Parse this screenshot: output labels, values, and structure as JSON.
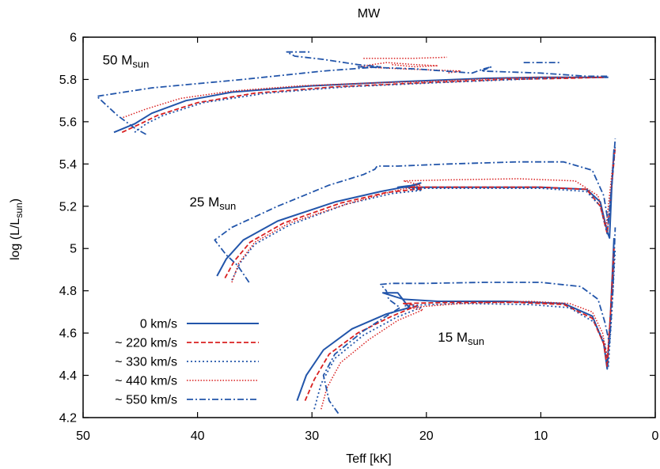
{
  "chart_data": {
    "type": "line",
    "title": "MW",
    "xlabel": "Teff [kK]",
    "ylabel_main": "log (L/L",
    "ylabel_sub": "sun",
    "ylabel_end": ")",
    "xlim": [
      50,
      0
    ],
    "ylim": [
      4.2,
      6.0
    ],
    "x_ticks": [
      50,
      40,
      30,
      20,
      10,
      0
    ],
    "y_ticks": [
      4.2,
      4.4,
      4.6,
      4.8,
      5.0,
      5.2,
      5.4,
      5.6,
      5.8,
      6.0
    ],
    "x_tick_labels": [
      "50",
      "40",
      "30",
      "20",
      "10",
      "0"
    ],
    "y_tick_labels": [
      "4.2",
      "4.4",
      "4.6",
      "4.8",
      "5",
      "5.2",
      "5.4",
      "5.6",
      "5.8",
      "6"
    ],
    "grid": false,
    "legend_position": "bottom-left",
    "annotations": [
      {
        "main": "50 M",
        "sub": "sun",
        "x": 48.3,
        "y": 5.87
      },
      {
        "main": "25 M",
        "sub": "sun",
        "x": 40.7,
        "y": 5.2
      },
      {
        "main": "15 M",
        "sub": "sun",
        "x": 19.0,
        "y": 4.56
      }
    ],
    "series": [
      {
        "name": "0 km/s",
        "color": "#2255aa",
        "dash": "solid",
        "width": 2,
        "tracks": [
          [
            [
              47.3,
              5.55
            ],
            [
              45.5,
              5.59
            ],
            [
              44,
              5.64
            ],
            [
              41,
              5.7
            ],
            [
              37,
              5.74
            ],
            [
              30,
              5.77
            ],
            [
              22,
              5.79
            ],
            [
              15,
              5.805
            ],
            [
              10,
              5.81
            ],
            [
              5,
              5.81
            ],
            [
              4.1,
              5.81
            ]
          ],
          [
            [
              38.3,
              4.87
            ],
            [
              37.5,
              4.95
            ],
            [
              36,
              5.04
            ],
            [
              33,
              5.13
            ],
            [
              28,
              5.22
            ],
            [
              24,
              5.27
            ],
            [
              21.5,
              5.295
            ],
            [
              20.5,
              5.31
            ],
            [
              21,
              5.3
            ],
            [
              22.5,
              5.29
            ],
            [
              18,
              5.29
            ],
            [
              10,
              5.29
            ],
            [
              6,
              5.28
            ],
            [
              4.8,
              5.22
            ],
            [
              4.2,
              5.08
            ],
            [
              4.0,
              5.05
            ],
            [
              3.8,
              5.3
            ],
            [
              3.6,
              5.47
            ]
          ],
          [
            [
              31.3,
              4.28
            ],
            [
              30.5,
              4.4
            ],
            [
              29,
              4.52
            ],
            [
              26.5,
              4.62
            ],
            [
              23.5,
              4.69
            ],
            [
              21.5,
              4.72
            ],
            [
              22.5,
              4.79
            ],
            [
              23.8,
              4.79
            ],
            [
              22,
              4.76
            ],
            [
              19,
              4.75
            ],
            [
              13,
              4.75
            ],
            [
              8,
              4.74
            ],
            [
              5.5,
              4.68
            ],
            [
              4.5,
              4.55
            ],
            [
              4.2,
              4.43
            ],
            [
              3.9,
              4.7
            ],
            [
              3.6,
              5.05
            ]
          ]
        ]
      },
      {
        "name": "~ 220 km/s",
        "color": "#d92020",
        "dash": "6,3",
        "width": 1.8,
        "tracks": [
          [
            [
              46.6,
              5.55
            ],
            [
              45,
              5.59
            ],
            [
              43.5,
              5.63
            ],
            [
              40,
              5.69
            ],
            [
              35,
              5.735
            ],
            [
              28,
              5.765
            ],
            [
              20,
              5.785
            ],
            [
              13,
              5.8
            ],
            [
              8,
              5.805
            ],
            [
              4.5,
              5.81
            ]
          ],
          [
            [
              37.6,
              4.86
            ],
            [
              36.8,
              4.94
            ],
            [
              35.4,
              5.03
            ],
            [
              32.5,
              5.12
            ],
            [
              27.5,
              5.215
            ],
            [
              23.5,
              5.265
            ],
            [
              21,
              5.28
            ],
            [
              20.3,
              5.28
            ],
            [
              21.5,
              5.29
            ],
            [
              17,
              5.29
            ],
            [
              10,
              5.29
            ],
            [
              6,
              5.28
            ],
            [
              4.8,
              5.2
            ],
            [
              4.2,
              5.07
            ],
            [
              3.8,
              5.3
            ],
            [
              3.5,
              5.48
            ]
          ],
          [
            [
              30.6,
              4.28
            ],
            [
              29.8,
              4.38
            ],
            [
              28.5,
              4.5
            ],
            [
              26,
              4.6
            ],
            [
              23,
              4.68
            ],
            [
              20.8,
              4.73
            ],
            [
              22,
              4.74
            ],
            [
              18,
              4.745
            ],
            [
              12,
              4.745
            ],
            [
              8,
              4.735
            ],
            [
              5.5,
              4.67
            ],
            [
              4.5,
              4.55
            ],
            [
              4.2,
              4.44
            ],
            [
              3.9,
              4.7
            ],
            [
              3.6,
              5.0
            ]
          ]
        ]
      },
      {
        "name": "~ 330 km/s",
        "color": "#2255aa",
        "dash": "2,3",
        "width": 1.8,
        "tracks": [
          [
            [
              45.5,
              5.55
            ],
            [
              44.5,
              5.59
            ],
            [
              43,
              5.63
            ],
            [
              39.5,
              5.69
            ],
            [
              34,
              5.735
            ],
            [
              27,
              5.765
            ],
            [
              19,
              5.785
            ],
            [
              12,
              5.8
            ],
            [
              7,
              5.81
            ],
            [
              4.3,
              5.81
            ]
          ],
          [
            [
              37,
              4.85
            ],
            [
              36.3,
              4.93
            ],
            [
              35,
              5.02
            ],
            [
              32,
              5.11
            ],
            [
              27,
              5.21
            ],
            [
              23,
              5.26
            ],
            [
              20.5,
              5.275
            ],
            [
              21.5,
              5.285
            ],
            [
              16,
              5.285
            ],
            [
              10,
              5.285
            ],
            [
              6,
              5.27
            ],
            [
              4.8,
              5.2
            ],
            [
              4.2,
              5.07
            ],
            [
              3.8,
              5.3
            ],
            [
              3.5,
              5.49
            ]
          ],
          [
            [
              29.8,
              4.24
            ],
            [
              29.2,
              4.36
            ],
            [
              28,
              4.48
            ],
            [
              25.5,
              4.59
            ],
            [
              22.6,
              4.675
            ],
            [
              20.5,
              4.72
            ],
            [
              22,
              4.73
            ],
            [
              17,
              4.74
            ],
            [
              11,
              4.735
            ],
            [
              7.5,
              4.72
            ],
            [
              5.3,
              4.65
            ],
            [
              4.4,
              4.55
            ],
            [
              4.1,
              4.44
            ],
            [
              3.8,
              4.7
            ],
            [
              3.5,
              5.0
            ]
          ]
        ]
      },
      {
        "name": "~ 440 km/s",
        "color": "#d92020",
        "dash": "1.5,2",
        "width": 1.5,
        "tracks": [
          [
            [
              46.5,
              5.62
            ],
            [
              44.5,
              5.66
            ],
            [
              41.5,
              5.71
            ],
            [
              37,
              5.745
            ],
            [
              31,
              5.77
            ],
            [
              24,
              5.785
            ],
            [
              20,
              5.79
            ],
            [
              16,
              5.8
            ],
            [
              11,
              5.81
            ],
            [
              6,
              5.81
            ],
            [
              4.5,
              5.81
            ]
          ],
          [
            [
              23,
              5.87
            ],
            [
              21,
              5.86
            ],
            [
              19,
              5.865
            ],
            [
              21,
              5.87
            ],
            [
              23.5,
              5.88
            ],
            [
              26,
              5.86
            ],
            [
              22,
              5.85
            ],
            [
              17,
              5.84
            ],
            [
              18.2,
              5.83
            ]
          ],
          [
            [
              25.5,
              5.9
            ],
            [
              21,
              5.9
            ],
            [
              18.2,
              5.905
            ]
          ],
          [
            [
              37,
              4.84
            ],
            [
              36.4,
              4.93
            ],
            [
              35,
              5.03
            ],
            [
              32,
              5.12
            ],
            [
              27,
              5.21
            ],
            [
              23,
              5.27
            ],
            [
              20.5,
              5.3
            ],
            [
              22,
              5.32
            ],
            [
              18,
              5.325
            ],
            [
              12,
              5.33
            ],
            [
              7,
              5.32
            ],
            [
              5,
              5.25
            ],
            [
              4.3,
              5.1
            ],
            [
              3.9,
              5.3
            ],
            [
              3.6,
              5.45
            ]
          ],
          [
            [
              29.2,
              4.24
            ],
            [
              28.7,
              4.34
            ],
            [
              27.5,
              4.46
            ],
            [
              25,
              4.57
            ],
            [
              22.5,
              4.66
            ],
            [
              20.3,
              4.71
            ],
            [
              21.5,
              4.72
            ],
            [
              17,
              4.74
            ],
            [
              11,
              4.75
            ],
            [
              7.5,
              4.74
            ],
            [
              5.5,
              4.7
            ],
            [
              4.6,
              4.6
            ],
            [
              4.2,
              4.48
            ],
            [
              3.9,
              4.7
            ],
            [
              3.6,
              4.95
            ]
          ]
        ]
      },
      {
        "name": "~ 550 km/s",
        "color": "#2255aa",
        "dash": "8,3,2,3",
        "width": 1.8,
        "tracks": [
          [
            [
              44.5,
              5.54
            ],
            [
              45.5,
              5.57
            ],
            [
              47,
              5.63
            ],
            [
              48.8,
              5.72
            ],
            [
              44,
              5.76
            ],
            [
              36,
              5.8
            ],
            [
              29,
              5.84
            ],
            [
              24,
              5.86
            ],
            [
              26,
              5.87
            ],
            [
              29,
              5.895
            ],
            [
              31.5,
              5.91
            ],
            [
              32.2,
              5.93
            ],
            [
              30,
              5.93
            ]
          ],
          [
            [
              26,
              5.86
            ],
            [
              21,
              5.85
            ],
            [
              16,
              5.83
            ],
            [
              15,
              5.85
            ],
            [
              14.3,
              5.86
            ],
            [
              15.2,
              5.84
            ],
            [
              10,
              5.83
            ],
            [
              6,
              5.815
            ],
            [
              4.2,
              5.815
            ]
          ],
          [
            [
              11.5,
              5.88
            ],
            [
              9.5,
              5.88
            ],
            [
              8.2,
              5.88
            ]
          ],
          [
            [
              35.5,
              4.84
            ],
            [
              36.5,
              4.92
            ],
            [
              37.5,
              4.97
            ],
            [
              38.5,
              5.04
            ],
            [
              37,
              5.1
            ],
            [
              33,
              5.2
            ],
            [
              28.5,
              5.3
            ],
            [
              25.5,
              5.35
            ],
            [
              24.5,
              5.375
            ],
            [
              24.3,
              5.39
            ],
            [
              22.5,
              5.39
            ],
            [
              18,
              5.4
            ],
            [
              12,
              5.41
            ],
            [
              8,
              5.41
            ],
            [
              5.5,
              5.37
            ],
            [
              4.5,
              5.25
            ],
            [
              4.1,
              5.12
            ],
            [
              3.8,
              5.3
            ],
            [
              3.5,
              5.52
            ]
          ],
          [
            [
              27.7,
              4.22
            ],
            [
              28.5,
              4.28
            ],
            [
              29,
              4.4
            ],
            [
              28,
              4.5
            ],
            [
              25.5,
              4.61
            ],
            [
              23.5,
              4.68
            ],
            [
              22.3,
              4.72
            ],
            [
              23.3,
              4.76
            ],
            [
              23.5,
              4.8
            ],
            [
              24,
              4.83
            ],
            [
              23,
              4.835
            ],
            [
              20,
              4.835
            ],
            [
              15,
              4.84
            ],
            [
              10,
              4.84
            ],
            [
              6.5,
              4.82
            ],
            [
              5,
              4.76
            ],
            [
              4.4,
              4.65
            ],
            [
              4.0,
              4.55
            ],
            [
              3.7,
              4.8
            ],
            [
              3.5,
              5.1
            ]
          ]
        ]
      }
    ]
  }
}
